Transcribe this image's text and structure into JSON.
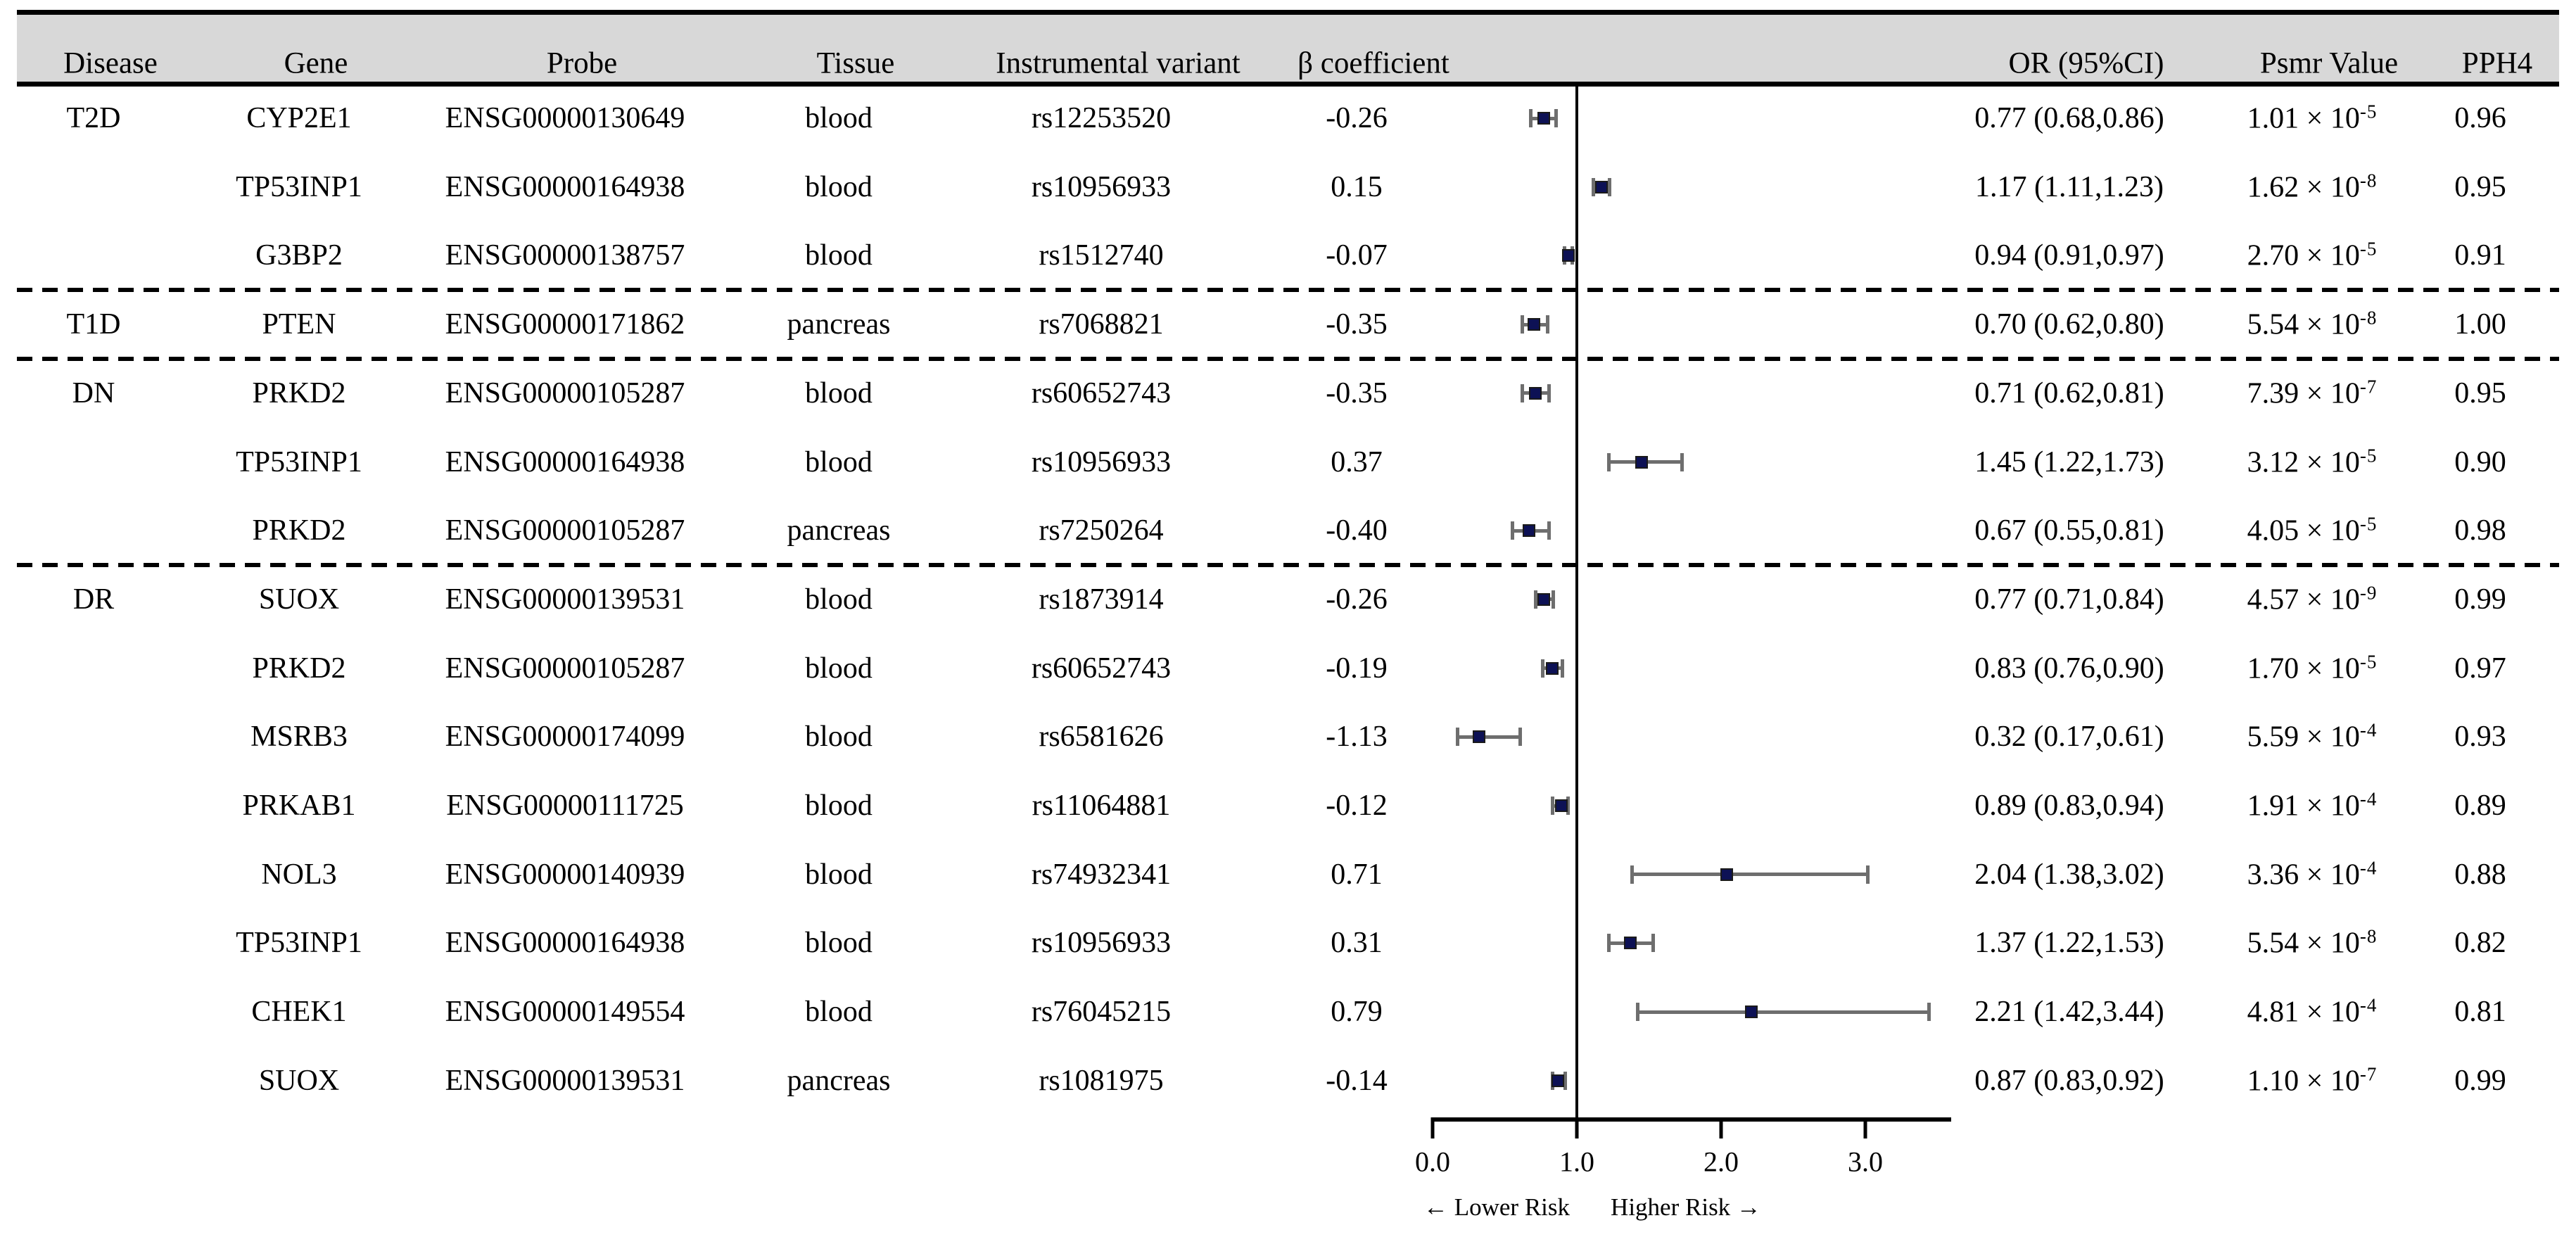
{
  "chart_data": {
    "type": "table",
    "subtype": "forest_plot",
    "columns": [
      "Disease",
      "Gene",
      "Probe",
      "Tissue",
      "Instrumental variant",
      "β coefficient",
      "OR (95%CI)",
      "Psmr Value",
      "PPH4"
    ],
    "psmr_base": " × 10",
    "x_axis": {
      "ticks": [
        "0.0",
        "1.0",
        "2.0",
        "3.0"
      ],
      "tick_values": [
        0.0,
        1.0,
        2.0,
        3.0
      ],
      "range": [
        0.0,
        3.6
      ],
      "reference_line": 1.0,
      "grid": false,
      "lower_risk_label": "← Lower Risk",
      "higher_risk_label": "Higher Risk →"
    },
    "separators_after_rows": [
      3,
      4,
      7
    ],
    "rows": [
      {
        "disease": "T2D",
        "gene": "CYP2E1",
        "probe": "ENSG00000130649",
        "tissue": "blood",
        "variant": "rs12253520",
        "beta": "-0.26",
        "or": 0.77,
        "ci_low": 0.68,
        "ci_high": 0.86,
        "or_ci": "0.77 (0.68,0.86)",
        "psmr_mantissa": "1.01",
        "psmr_exponent": "-5",
        "pph4": "0.96"
      },
      {
        "disease": "",
        "gene": "TP53INP1",
        "probe": "ENSG00000164938",
        "tissue": "blood",
        "variant": "rs10956933",
        "beta": "0.15",
        "or": 1.17,
        "ci_low": 1.11,
        "ci_high": 1.23,
        "or_ci": "1.17 (1.11,1.23)",
        "psmr_mantissa": "1.62",
        "psmr_exponent": "-8",
        "pph4": "0.95"
      },
      {
        "disease": "",
        "gene": "G3BP2",
        "probe": "ENSG00000138757",
        "tissue": "blood",
        "variant": "rs1512740",
        "beta": "-0.07",
        "or": 0.94,
        "ci_low": 0.91,
        "ci_high": 0.97,
        "or_ci": "0.94 (0.91,0.97)",
        "psmr_mantissa": "2.70",
        "psmr_exponent": "-5",
        "pph4": "0.91"
      },
      {
        "disease": "T1D",
        "gene": "PTEN",
        "probe": "ENSG00000171862",
        "tissue": "pancreas",
        "variant": "rs7068821",
        "beta": "-0.35",
        "or": 0.7,
        "ci_low": 0.62,
        "ci_high": 0.8,
        "or_ci": "0.70 (0.62,0.80)",
        "psmr_mantissa": "5.54",
        "psmr_exponent": "-8",
        "pph4": "1.00"
      },
      {
        "disease": "DN",
        "gene": "PRKD2",
        "probe": "ENSG00000105287",
        "tissue": "blood",
        "variant": "rs60652743",
        "beta": "-0.35",
        "or": 0.71,
        "ci_low": 0.62,
        "ci_high": 0.81,
        "or_ci": "0.71 (0.62,0.81)",
        "psmr_mantissa": "7.39",
        "psmr_exponent": "-7",
        "pph4": "0.95"
      },
      {
        "disease": "",
        "gene": "TP53INP1",
        "probe": "ENSG00000164938",
        "tissue": "blood",
        "variant": "rs10956933",
        "beta": "0.37",
        "or": 1.45,
        "ci_low": 1.22,
        "ci_high": 1.73,
        "or_ci": "1.45 (1.22,1.73)",
        "psmr_mantissa": "3.12",
        "psmr_exponent": "-5",
        "pph4": "0.90"
      },
      {
        "disease": "",
        "gene": "PRKD2",
        "probe": "ENSG00000105287",
        "tissue": "pancreas",
        "variant": "rs7250264",
        "beta": "-0.40",
        "or": 0.67,
        "ci_low": 0.55,
        "ci_high": 0.81,
        "or_ci": "0.67 (0.55,0.81)",
        "psmr_mantissa": "4.05",
        "psmr_exponent": "-5",
        "pph4": "0.98"
      },
      {
        "disease": "DR",
        "gene": "SUOX",
        "probe": "ENSG00000139531",
        "tissue": "blood",
        "variant": "rs1873914",
        "beta": "-0.26",
        "or": 0.77,
        "ci_low": 0.71,
        "ci_high": 0.84,
        "or_ci": "0.77 (0.71,0.84)",
        "psmr_mantissa": "4.57",
        "psmr_exponent": "-9",
        "pph4": "0.99"
      },
      {
        "disease": "",
        "gene": "PRKD2",
        "probe": "ENSG00000105287",
        "tissue": "blood",
        "variant": "rs60652743",
        "beta": "-0.19",
        "or": 0.83,
        "ci_low": 0.76,
        "ci_high": 0.9,
        "or_ci": "0.83 (0.76,0.90)",
        "psmr_mantissa": "1.70",
        "psmr_exponent": "-5",
        "pph4": "0.97"
      },
      {
        "disease": "",
        "gene": "MSRB3",
        "probe": "ENSG00000174099",
        "tissue": "blood",
        "variant": "rs6581626",
        "beta": "-1.13",
        "or": 0.32,
        "ci_low": 0.17,
        "ci_high": 0.61,
        "or_ci": "0.32 (0.17,0.61)",
        "psmr_mantissa": "5.59",
        "psmr_exponent": "-4",
        "pph4": "0.93"
      },
      {
        "disease": "",
        "gene": "PRKAB1",
        "probe": "ENSG00000111725",
        "tissue": "blood",
        "variant": "rs11064881",
        "beta": "-0.12",
        "or": 0.89,
        "ci_low": 0.83,
        "ci_high": 0.94,
        "or_ci": "0.89 (0.83,0.94)",
        "psmr_mantissa": "1.91",
        "psmr_exponent": "-4",
        "pph4": "0.89"
      },
      {
        "disease": "",
        "gene": "NOL3",
        "probe": "ENSG00000140939",
        "tissue": "blood",
        "variant": "rs74932341",
        "beta": "0.71",
        "or": 2.04,
        "ci_low": 1.38,
        "ci_high": 3.02,
        "or_ci": "2.04 (1.38,3.02)",
        "psmr_mantissa": "3.36",
        "psmr_exponent": "-4",
        "pph4": "0.88"
      },
      {
        "disease": "",
        "gene": "TP53INP1",
        "probe": "ENSG00000164938",
        "tissue": "blood",
        "variant": "rs10956933",
        "beta": "0.31",
        "or": 1.37,
        "ci_low": 1.22,
        "ci_high": 1.53,
        "or_ci": "1.37 (1.22,1.53)",
        "psmr_mantissa": "5.54",
        "psmr_exponent": "-8",
        "pph4": "0.82"
      },
      {
        "disease": "",
        "gene": "CHEK1",
        "probe": "ENSG00000149554",
        "tissue": "blood",
        "variant": "rs76045215",
        "beta": "0.79",
        "or": 2.21,
        "ci_low": 1.42,
        "ci_high": 3.44,
        "or_ci": "2.21 (1.42,3.44)",
        "psmr_mantissa": "4.81",
        "psmr_exponent": "-4",
        "pph4": "0.81"
      },
      {
        "disease": "",
        "gene": "SUOX",
        "probe": "ENSG00000139531",
        "tissue": "pancreas",
        "variant": "rs1081975",
        "beta": "-0.14",
        "or": 0.87,
        "ci_low": 0.83,
        "ci_high": 0.92,
        "or_ci": "0.87 (0.83,0.92)",
        "psmr_mantissa": "1.10",
        "psmr_exponent": "-7",
        "pph4": "0.99"
      }
    ],
    "colors": {
      "marker": "#0d1155",
      "ci_line": "#6e6e6e",
      "header_bg": "#d8d8d8",
      "rule": "#000000"
    }
  }
}
